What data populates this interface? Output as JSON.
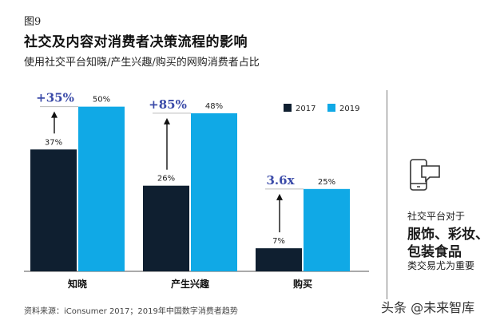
{
  "figure_label": "图9",
  "title": "社交及内容对消费者决策流程的影响",
  "subtitle": "使用社交平台知晓/产生兴趣/购买的网购消费者占比",
  "chart_data": {
    "type": "bar",
    "categories": [
      "知晓",
      "产生兴趣",
      "购买"
    ],
    "series": [
      {
        "name": "2017",
        "values": [
          37,
          26,
          7
        ],
        "labels": [
          "37%",
          "26%",
          "7%"
        ],
        "color": "#0f1f30"
      },
      {
        "name": "2019",
        "values": [
          50,
          48,
          25
        ],
        "labels": [
          "50%",
          "48%",
          "25%"
        ],
        "color": "#10a9e6"
      }
    ],
    "annotations": [
      "+35%",
      "+85%",
      "3.6x"
    ],
    "annotation_color": "#3a4aa8",
    "ylim": [
      0,
      55
    ],
    "legend_position": "top-right",
    "grid": false
  },
  "side_panel": {
    "icon": "phone-chat-icon",
    "line1": "社交平台对于",
    "line2": "服饰、彩妆、",
    "line3": "包装食品",
    "line4": "类交易尤为重要"
  },
  "source": "资料来源：iConsumer 2017；2019年中国数字消费者趋势",
  "watermark": "头条 @未来智库"
}
